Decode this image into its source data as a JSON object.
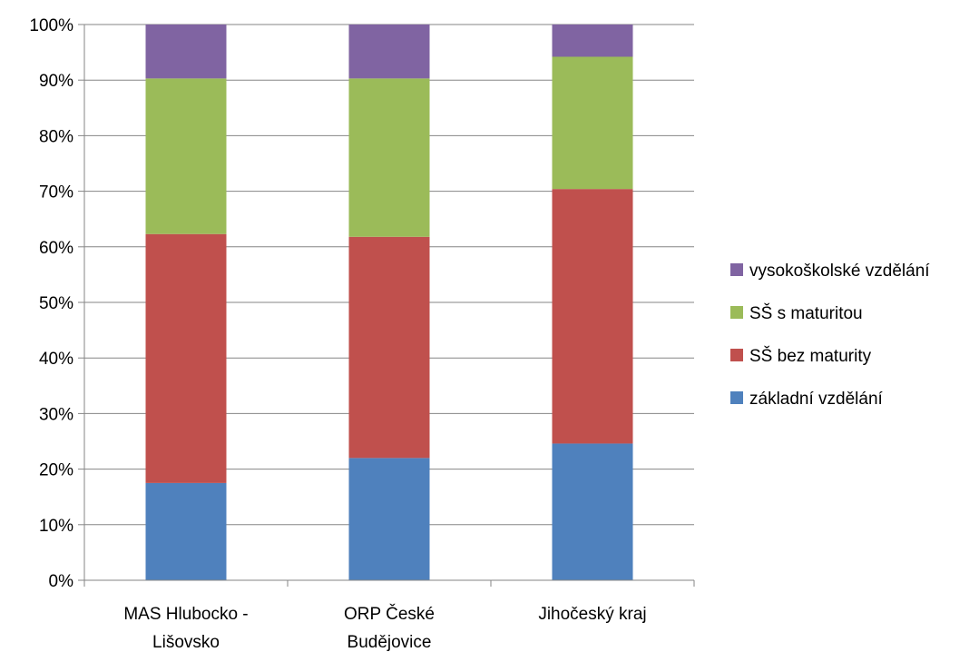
{
  "chart_data": {
    "type": "bar",
    "stacked": true,
    "percent_stacked": true,
    "categories": [
      "MAS Hlubocko - Lišovsko",
      "ORP České Budějovice",
      "Jihočeský kraj"
    ],
    "category_lines": [
      [
        "MAS Hlubocko -",
        "Lišovsko"
      ],
      [
        "ORP České",
        "Budějovice"
      ],
      [
        "Jihočeský kraj"
      ]
    ],
    "series": [
      {
        "name": "základní vzdělání",
        "color": "#4F81BD",
        "values": [
          17.5,
          22.0,
          24.6
        ]
      },
      {
        "name": "SŠ bez maturity",
        "color": "#C0504D",
        "values": [
          44.8,
          39.8,
          45.8
        ]
      },
      {
        "name": "SŠ s maturitou",
        "color": "#9BBB59",
        "values": [
          28.0,
          28.5,
          23.8
        ]
      },
      {
        "name": "vysokoškolské vzdělání",
        "color": "#8064A2",
        "values": [
          9.7,
          9.7,
          5.8
        ]
      }
    ],
    "y_ticks": [
      "0%",
      "10%",
      "20%",
      "30%",
      "40%",
      "50%",
      "60%",
      "70%",
      "80%",
      "90%",
      "100%"
    ],
    "ylim": [
      0,
      100
    ],
    "grid": true,
    "legend_position": "right",
    "legend_order": [
      3,
      2,
      1,
      0
    ],
    "title": "",
    "xlabel": "",
    "ylabel": ""
  }
}
